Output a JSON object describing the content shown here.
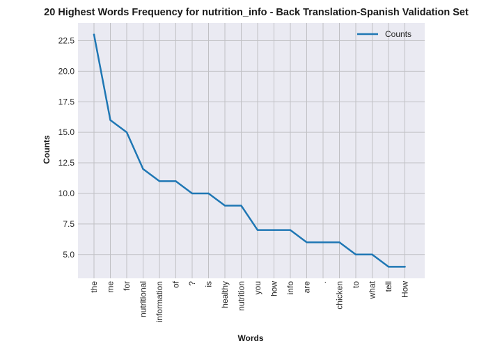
{
  "chart_data": {
    "type": "line",
    "title": "20 Highest Words Frequency for nutrition_info - Back Translation-Spanish Validation Set",
    "xlabel": "Words",
    "ylabel": "Counts",
    "categories": [
      "the",
      "me",
      "for",
      "nutritional",
      "information",
      "of",
      "?",
      "is",
      "healthy",
      "nutrition",
      "you",
      "how",
      "info",
      "are",
      ".",
      "chicken",
      "to",
      "what",
      "tell",
      "How"
    ],
    "series": [
      {
        "name": "Counts",
        "values": [
          23,
          16,
          15,
          12,
          11,
          11,
          10,
          10,
          9,
          9,
          7,
          7,
          7,
          6,
          6,
          6,
          5,
          5,
          4,
          4
        ]
      }
    ],
    "ylim": [
      3.05,
      23.95
    ],
    "yticks": [
      "5.0",
      "7.5",
      "10.0",
      "12.5",
      "15.0",
      "17.5",
      "20.0",
      "22.5"
    ],
    "grid": true,
    "legend_position": "upper-right",
    "colors": {
      "line": "#1f77b4",
      "plot_bg": "#eaeaf2",
      "grid": "#c0c0c4"
    }
  }
}
